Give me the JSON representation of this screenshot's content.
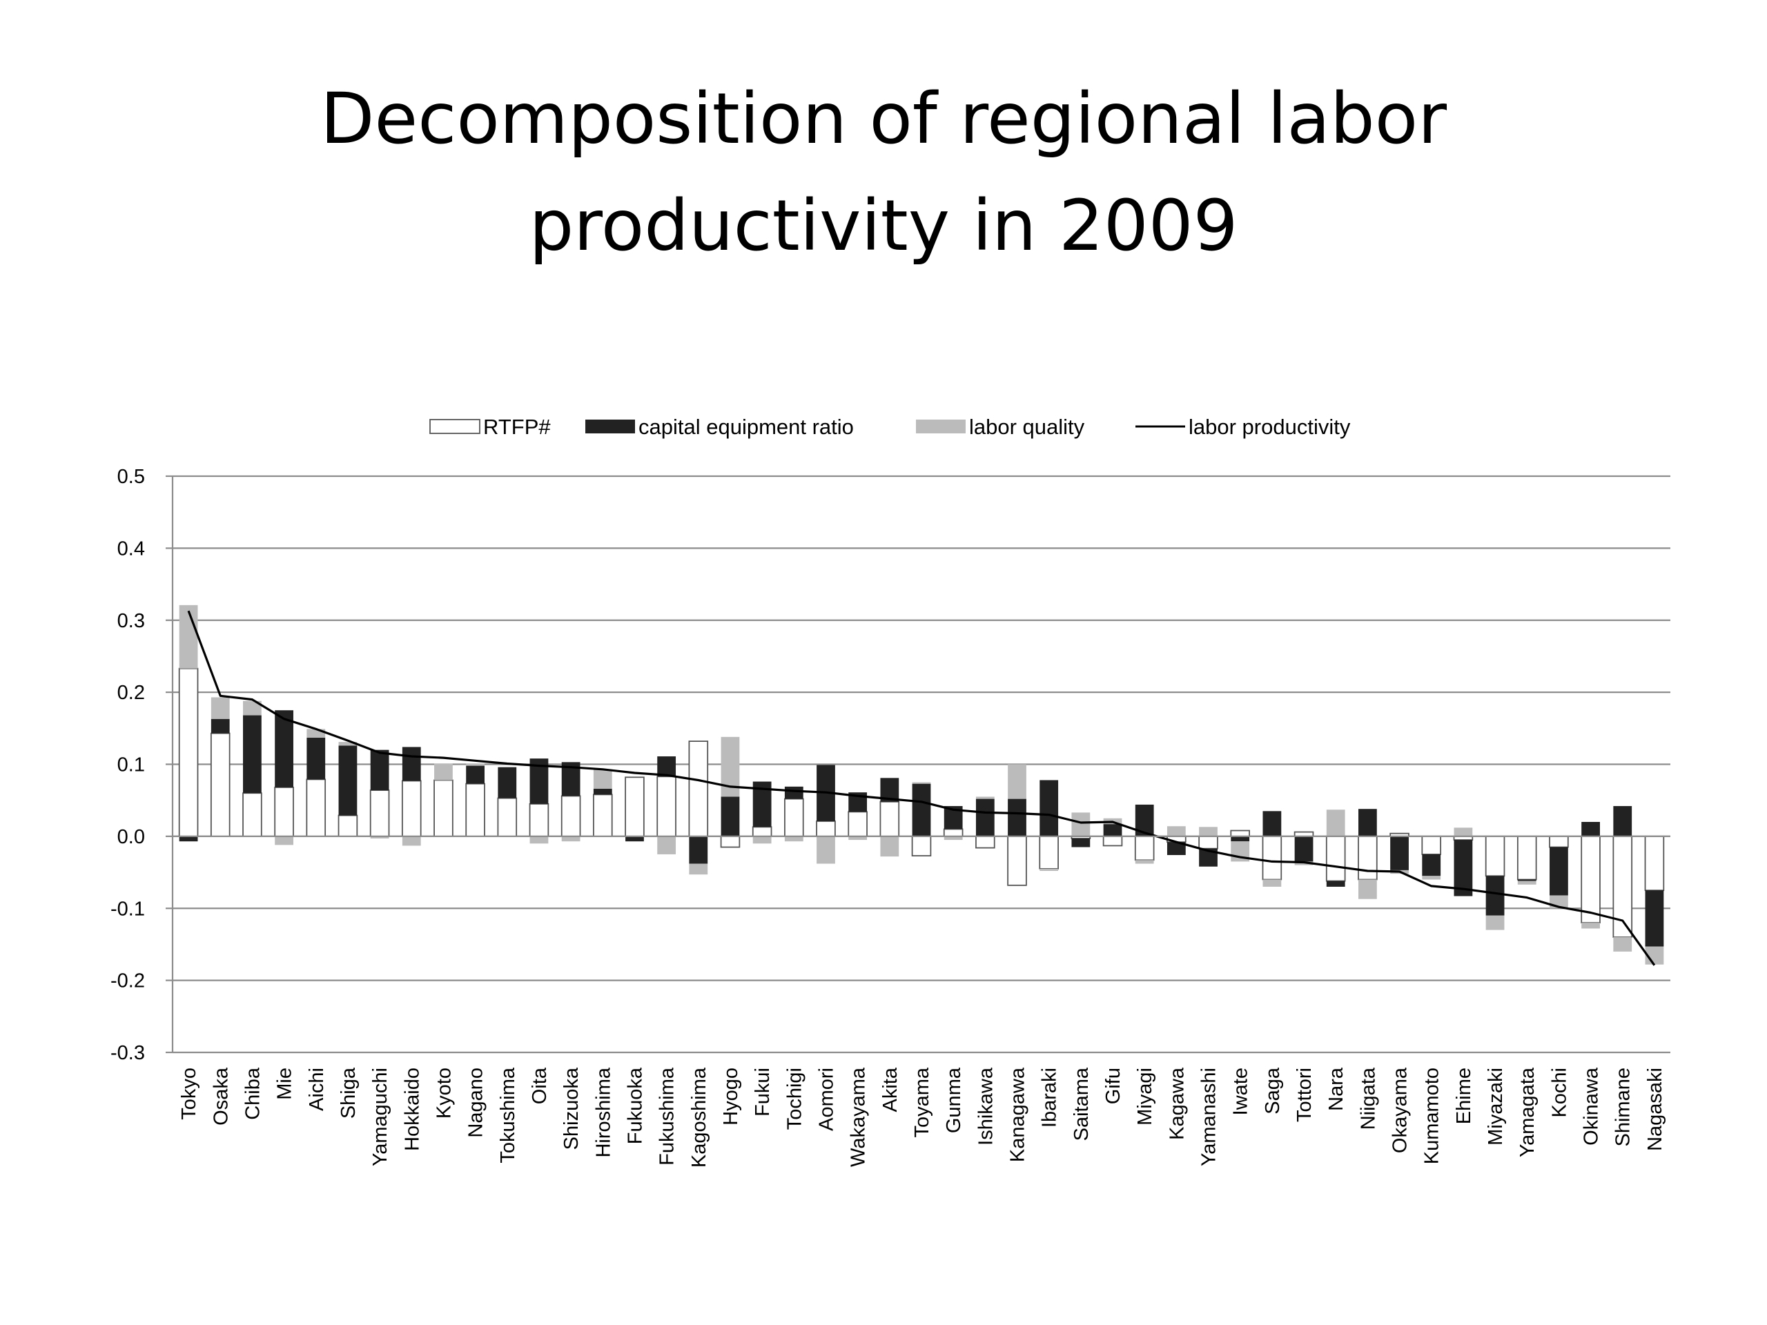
{
  "slide": {
    "title_line1": "Decomposition of regional labor",
    "title_line2": "productivity in 2009"
  },
  "chart_data": {
    "type": "bar",
    "title": "Decomposition of regional labor productivity in 2009",
    "xlabel": "",
    "ylabel": "",
    "ylim": [
      -0.3,
      0.5
    ],
    "yticks": [
      0.5,
      0.4,
      0.3,
      0.2,
      0.1,
      0.0,
      -0.1,
      -0.2,
      -0.3
    ],
    "ytick_labels": [
      "0.5",
      "0.4",
      "0.3",
      "0.2",
      "0.1",
      "0.0",
      "-0.1",
      "-0.2",
      "-0.3"
    ],
    "grid": true,
    "legend_position": "top",
    "stacked": true,
    "categories": [
      "Tokyo",
      "Osaka",
      "Chiba",
      "Mie",
      "Aichi",
      "Shiga",
      "Yamaguchi",
      "Hokkaido",
      "Kyoto",
      "Nagano",
      "Tokushima",
      "Oita",
      "Shizuoka",
      "Hiroshima",
      "Fukuoka",
      "Fukushima",
      "Kagoshima",
      "Hyogo",
      "Fukui",
      "Tochigi",
      "Aomori",
      "Wakayama",
      "Akita",
      "Toyama",
      "Gunma",
      "Ishikawa",
      "Kanagawa",
      "Ibaraki",
      "Saitama",
      "Gifu",
      "Miyagi",
      "Kagawa",
      "Yamanashi",
      "Iwate",
      "Saga",
      "Tottori",
      "Nara",
      "Niigata",
      "Okayama",
      "Kumamoto",
      "Ehime",
      "Miyazaki",
      "Yamagata",
      "Kochi",
      "Okinawa",
      "Shimane",
      "Nagasaki"
    ],
    "series": [
      {
        "name": "RTFP#",
        "kind": "bar",
        "color": "#ffffff",
        "stroke": "#555555",
        "values": [
          0.233,
          0.143,
          0.06,
          0.068,
          0.079,
          0.029,
          0.064,
          0.077,
          0.078,
          0.073,
          0.053,
          0.045,
          0.056,
          0.058,
          0.082,
          0.083,
          0.132,
          -0.015,
          0.013,
          0.052,
          0.021,
          0.034,
          0.048,
          -0.027,
          0.01,
          -0.016,
          -0.068,
          -0.045,
          -0.003,
          -0.013,
          -0.033,
          -0.008,
          -0.017,
          0.008,
          -0.06,
          0.006,
          -0.062,
          -0.06,
          0.004,
          -0.025,
          -0.005,
          -0.055,
          -0.06,
          -0.015,
          -0.12,
          -0.14,
          -0.075
        ]
      },
      {
        "name": "capital equipment ratio",
        "kind": "bar",
        "color": "#222222",
        "values": [
          -0.007,
          0.02,
          0.108,
          0.107,
          0.058,
          0.097,
          0.056,
          0.047,
          0.0,
          0.025,
          0.043,
          0.063,
          0.047,
          0.008,
          -0.007,
          0.028,
          -0.038,
          0.055,
          0.063,
          0.017,
          0.078,
          0.027,
          0.033,
          0.073,
          0.032,
          0.052,
          0.052,
          0.078,
          -0.012,
          0.017,
          0.044,
          -0.018,
          -0.025,
          -0.007,
          0.035,
          -0.035,
          -0.008,
          0.038,
          -0.047,
          -0.03,
          -0.078,
          -0.055,
          -0.002,
          -0.067,
          0.02,
          0.042,
          -0.078
        ]
      },
      {
        "name": "labor quality",
        "kind": "bar",
        "color": "#bbbbbb",
        "values": [
          0.088,
          0.03,
          0.02,
          -0.012,
          0.012,
          0.005,
          -0.003,
          -0.013,
          0.023,
          0.003,
          0.0,
          -0.01,
          -0.007,
          0.027,
          0.0,
          -0.025,
          -0.015,
          0.083,
          -0.01,
          -0.007,
          -0.038,
          -0.005,
          -0.028,
          0.002,
          -0.005,
          0.003,
          0.048,
          -0.003,
          0.033,
          0.008,
          -0.005,
          0.014,
          0.013,
          -0.028,
          -0.01,
          -0.005,
          0.037,
          -0.027,
          -0.005,
          -0.005,
          0.012,
          -0.02,
          -0.005,
          -0.018,
          -0.008,
          -0.02,
          -0.025
        ]
      },
      {
        "name": "labor productivity",
        "kind": "line",
        "color": "#000000",
        "values": [
          0.313,
          0.195,
          0.19,
          0.163,
          0.149,
          0.133,
          0.116,
          0.111,
          0.109,
          0.105,
          0.101,
          0.098,
          0.096,
          0.093,
          0.088,
          0.085,
          0.078,
          0.069,
          0.066,
          0.063,
          0.061,
          0.056,
          0.052,
          0.048,
          0.037,
          0.033,
          0.032,
          0.03,
          0.019,
          0.02,
          0.005,
          -0.008,
          -0.02,
          -0.029,
          -0.035,
          -0.036,
          -0.042,
          -0.048,
          -0.049,
          -0.069,
          -0.073,
          -0.079,
          -0.085,
          -0.098,
          -0.106,
          -0.117,
          -0.179
        ]
      }
    ]
  }
}
